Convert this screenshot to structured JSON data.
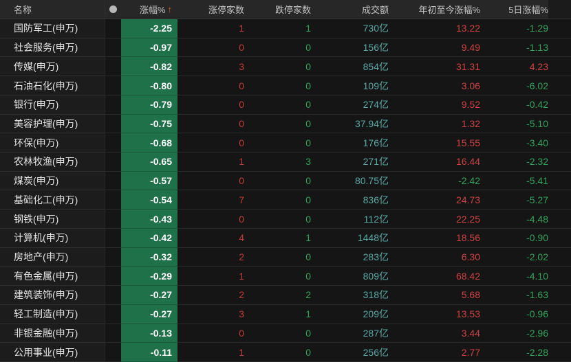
{
  "header": {
    "name": "名称",
    "dot_icon": "signal-dot",
    "change": "涨幅%",
    "sort_arrow": "↑",
    "limit_up": "涨停家数",
    "limit_down": "跌停家数",
    "turnover": "成交额",
    "ytd_change": "年初至今涨幅%",
    "five_day_change": "5日涨幅%"
  },
  "colors": {
    "up_red": "#d04042",
    "down_green": "#2fa35c",
    "limit_up_red": "#c23a3c",
    "turnover_teal": "#58a8a4",
    "change_cell_green": "#1f7149",
    "sort_arrow_orange": "#d75b31",
    "header_dot_gray": "#b8b8b8"
  },
  "rows": [
    {
      "name": "国防军工(申万)",
      "change": "-2.25",
      "limit_up": "1",
      "limit_down": "1",
      "turnover": "730亿",
      "ytd": "13.22",
      "d5": "-1.29"
    },
    {
      "name": "社会服务(申万)",
      "change": "-0.97",
      "limit_up": "0",
      "limit_down": "0",
      "turnover": "156亿",
      "ytd": "9.49",
      "d5": "-1.13"
    },
    {
      "name": "传媒(申万)",
      "change": "-0.82",
      "limit_up": "3",
      "limit_down": "0",
      "turnover": "854亿",
      "ytd": "31.31",
      "d5": "4.23"
    },
    {
      "name": "石油石化(申万)",
      "change": "-0.80",
      "limit_up": "0",
      "limit_down": "0",
      "turnover": "109亿",
      "ytd": "3.06",
      "d5": "-6.02"
    },
    {
      "name": "银行(申万)",
      "change": "-0.79",
      "limit_up": "0",
      "limit_down": "0",
      "turnover": "274亿",
      "ytd": "9.52",
      "d5": "-0.42"
    },
    {
      "name": "美容护理(申万)",
      "change": "-0.75",
      "limit_up": "0",
      "limit_down": "0",
      "turnover": "37.94亿",
      "ytd": "1.32",
      "d5": "-5.10"
    },
    {
      "name": "环保(申万)",
      "change": "-0.68",
      "limit_up": "0",
      "limit_down": "0",
      "turnover": "176亿",
      "ytd": "15.55",
      "d5": "-3.40"
    },
    {
      "name": "农林牧渔(申万)",
      "change": "-0.65",
      "limit_up": "1",
      "limit_down": "3",
      "turnover": "271亿",
      "ytd": "16.44",
      "d5": "-2.32"
    },
    {
      "name": "煤炭(申万)",
      "change": "-0.57",
      "limit_up": "0",
      "limit_down": "0",
      "turnover": "80.75亿",
      "ytd": "-2.42",
      "d5": "-5.41"
    },
    {
      "name": "基础化工(申万)",
      "change": "-0.54",
      "limit_up": "7",
      "limit_down": "0",
      "turnover": "836亿",
      "ytd": "24.73",
      "d5": "-5.27"
    },
    {
      "name": "钢铁(申万)",
      "change": "-0.43",
      "limit_up": "0",
      "limit_down": "0",
      "turnover": "112亿",
      "ytd": "22.25",
      "d5": "-4.48"
    },
    {
      "name": "计算机(申万)",
      "change": "-0.42",
      "limit_up": "4",
      "limit_down": "1",
      "turnover": "1448亿",
      "ytd": "18.56",
      "d5": "-0.90"
    },
    {
      "name": "房地产(申万)",
      "change": "-0.32",
      "limit_up": "2",
      "limit_down": "0",
      "turnover": "283亿",
      "ytd": "6.30",
      "d5": "-2.02"
    },
    {
      "name": "有色金属(申万)",
      "change": "-0.29",
      "limit_up": "1",
      "limit_down": "0",
      "turnover": "809亿",
      "ytd": "68.42",
      "d5": "-4.10"
    },
    {
      "name": "建筑装饰(申万)",
      "change": "-0.27",
      "limit_up": "2",
      "limit_down": "2",
      "turnover": "318亿",
      "ytd": "5.68",
      "d5": "-1.63"
    },
    {
      "name": "轻工制造(申万)",
      "change": "-0.27",
      "limit_up": "3",
      "limit_down": "1",
      "turnover": "209亿",
      "ytd": "13.53",
      "d5": "-0.96"
    },
    {
      "name": "非银金融(申万)",
      "change": "-0.13",
      "limit_up": "0",
      "limit_down": "0",
      "turnover": "287亿",
      "ytd": "3.44",
      "d5": "-2.96"
    },
    {
      "name": "公用事业(申万)",
      "change": "-0.11",
      "limit_up": "1",
      "limit_down": "0",
      "turnover": "256亿",
      "ytd": "2.77",
      "d5": "-2.28"
    }
  ]
}
